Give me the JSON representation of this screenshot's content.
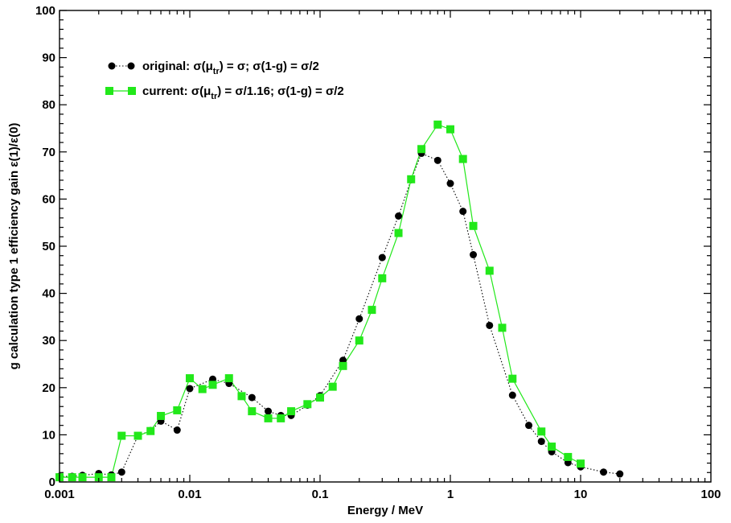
{
  "chart_data": {
    "type": "scatter",
    "title": "",
    "xlabel": "Energy / MeV",
    "ylabel": "g calculation type 1 efficiency gain ε(1)/ε(0)",
    "xscale": "log",
    "xlim": [
      0.001,
      100
    ],
    "ylim": [
      0,
      100
    ],
    "x_ticks": [
      0.001,
      0.01,
      0.1,
      1,
      10,
      100
    ],
    "x_tick_labels": [
      "0.001",
      "0.01",
      "0.1",
      "1",
      "10",
      "100"
    ],
    "y_ticks": [
      0,
      10,
      20,
      30,
      40,
      50,
      60,
      70,
      80,
      90,
      100
    ],
    "y_tick_labels": [
      "0",
      "10",
      "20",
      "30",
      "40",
      "50",
      "60",
      "70",
      "80",
      "90",
      "100"
    ],
    "grid": false,
    "legend_position": "top-left",
    "series": [
      {
        "name": "original",
        "legend": {
          "label": "original: ",
          "p1": "σ(μ",
          "sub": "tr",
          "p2": ") = σ; σ(1-g) = σ/2"
        },
        "color": "#000000",
        "marker": "circle",
        "line": "dotted",
        "x": [
          0.001,
          0.00125,
          0.0015,
          0.002,
          0.0025,
          0.003,
          0.004,
          0.005,
          0.006,
          0.008,
          0.01,
          0.015,
          0.02,
          0.03,
          0.04,
          0.05,
          0.06,
          0.08,
          0.1,
          0.15,
          0.2,
          0.3,
          0.4,
          0.5,
          0.6,
          0.8,
          1.0,
          1.25,
          1.5,
          2.0,
          3.0,
          4.0,
          5.0,
          6.0,
          8.0,
          10.0,
          15.0,
          20.0
        ],
        "y": [
          1.2,
          1.2,
          1.4,
          1.8,
          1.5,
          2.1,
          9.8,
          10.9,
          12.9,
          11.0,
          19.8,
          21.8,
          20.9,
          17.9,
          15.0,
          14.1,
          14.1,
          16.3,
          18.3,
          25.8,
          34.6,
          47.6,
          56.4,
          64.1,
          69.7,
          68.2,
          63.3,
          57.4,
          48.2,
          33.2,
          18.4,
          12.0,
          8.6,
          6.4,
          4.1,
          3.2,
          2.1,
          1.7
        ]
      },
      {
        "name": "current",
        "legend": {
          "label": "current: ",
          "p1": "σ(μ",
          "sub": "tr",
          "p2": ") = σ/1.16; σ(1-g) = σ/2"
        },
        "color": "#22e81a",
        "marker": "square",
        "line": "solid",
        "x": [
          0.001,
          0.00125,
          0.0015,
          0.002,
          0.0025,
          0.003,
          0.004,
          0.005,
          0.006,
          0.008,
          0.01,
          0.0125,
          0.015,
          0.02,
          0.025,
          0.03,
          0.04,
          0.05,
          0.06,
          0.08,
          0.1,
          0.125,
          0.15,
          0.2,
          0.25,
          0.3,
          0.4,
          0.5,
          0.6,
          0.8,
          1.0,
          1.25,
          1.5,
          2.0,
          2.5,
          3.0,
          5.0,
          6.0,
          8.0,
          10.0
        ],
        "y": [
          1.0,
          1.0,
          1.0,
          1.0,
          1.0,
          9.8,
          9.8,
          10.8,
          14.0,
          15.2,
          22.0,
          19.7,
          20.6,
          22.0,
          18.2,
          15.0,
          13.5,
          13.5,
          15.0,
          16.5,
          17.9,
          20.2,
          24.6,
          30.0,
          36.5,
          43.2,
          52.8,
          64.2,
          70.6,
          75.8,
          74.8,
          68.5,
          54.3,
          44.8,
          32.7,
          21.9,
          10.7,
          7.5,
          5.3,
          3.9
        ]
      }
    ]
  }
}
